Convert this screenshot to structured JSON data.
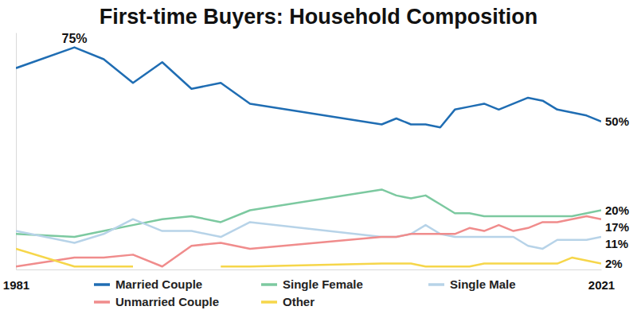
{
  "chart_data": {
    "type": "line",
    "title": "First-time Buyers: Household Composition",
    "x": [
      1981,
      1985,
      1987,
      1989,
      1991,
      1993,
      1995,
      1997,
      2006,
      2007,
      2008,
      2009,
      2010,
      2011,
      2012,
      2013,
      2014,
      2015,
      2016,
      2017,
      2018,
      2019,
      2020,
      2021
    ],
    "series": [
      {
        "name": "Married Couple",
        "color": "#1f6db3",
        "values": [
          68,
          75,
          71,
          63,
          70,
          61,
          63,
          56,
          49,
          51,
          49,
          49,
          48,
          54,
          55,
          56,
          54,
          56,
          58,
          57,
          54,
          53,
          52,
          50
        ]
      },
      {
        "name": "Single Female",
        "color": "#7cc9a0",
        "values": [
          12,
          11,
          13,
          15,
          17,
          18,
          16,
          20,
          27,
          25,
          24,
          25,
          22,
          19,
          19,
          18,
          18,
          18,
          18,
          18,
          18,
          18,
          19,
          20
        ]
      },
      {
        "name": "Single Male",
        "color": "#b7d3e8",
        "values": [
          13,
          9,
          12,
          17,
          13,
          13,
          11,
          16,
          11,
          11,
          12,
          15,
          12,
          11,
          11,
          11,
          11,
          11,
          8,
          7,
          10,
          10,
          10,
          11
        ]
      },
      {
        "name": "Unmarried Couple",
        "color": "#f08c8c",
        "values": [
          1,
          4,
          4,
          5,
          1,
          8,
          9,
          7,
          11,
          11,
          12,
          12,
          12,
          12,
          14,
          13,
          15,
          13,
          14,
          16,
          16,
          17,
          18,
          17
        ]
      },
      {
        "name": "Other",
        "color": "#f6d64a",
        "values": [
          7,
          1,
          1,
          1,
          null,
          null,
          1,
          1,
          2,
          2,
          2,
          1,
          1,
          1,
          1,
          2,
          2,
          2,
          2,
          2,
          2,
          4,
          3,
          2
        ]
      }
    ],
    "xlim": [
      1981,
      2021
    ],
    "xticks": [
      1981,
      2021
    ],
    "ylim": [
      0,
      80
    ],
    "tick_labels": "x",
    "grid": false,
    "legend": "bottom",
    "annotations": [
      {
        "text": "75%",
        "x": 1985,
        "y": 75
      },
      {
        "text": "50%",
        "x": 2021,
        "y": 50
      },
      {
        "text": "20%",
        "x": 2021,
        "y": 20
      },
      {
        "text": "17%",
        "x": 2021,
        "y": 17
      },
      {
        "text": "11%",
        "x": 2021,
        "y": 11
      },
      {
        "text": "2%",
        "x": 2021,
        "y": 2
      }
    ]
  }
}
